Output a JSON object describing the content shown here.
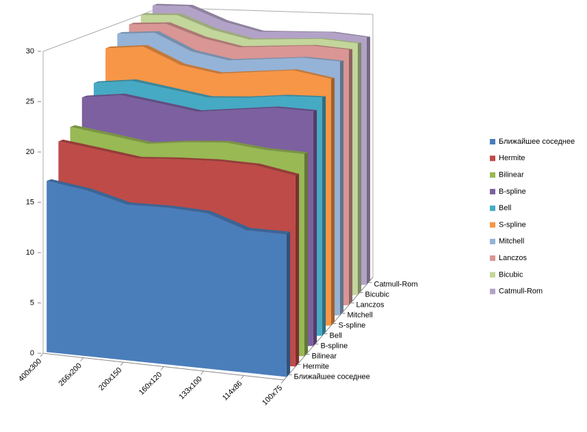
{
  "chart_data": {
    "type": "area3d",
    "categories": [
      "400x300",
      "266x200",
      "200x150",
      "160x120",
      "133x100",
      "114x86",
      "100x75"
    ],
    "series": [
      {
        "name": "Ближайшее соседнее",
        "color": "#4a7ebb",
        "values": [
          17,
          16,
          14.6,
          14.3,
          13.8,
          12.3,
          12
        ]
      },
      {
        "name": "Hermite",
        "color": "#be4b48",
        "values": [
          20.5,
          19.5,
          18.5,
          18.3,
          18,
          17.5,
          16.5
        ]
      },
      {
        "name": "Bilinear",
        "color": "#98b954",
        "values": [
          21.5,
          20.5,
          19.5,
          19.5,
          19.3,
          18.5,
          18
        ]
      },
      {
        "name": "B-spline",
        "color": "#7d60a0",
        "values": [
          24,
          24,
          23,
          22,
          22,
          22,
          21.5
        ]
      },
      {
        "name": "Bell",
        "color": "#46aac5",
        "values": [
          25,
          25,
          24,
          23,
          22.8,
          22.8,
          22.5
        ]
      },
      {
        "name": "S-spline",
        "color": "#f79646",
        "values": [
          28,
          28,
          26,
          25,
          25,
          25,
          24
        ]
      },
      {
        "name": "Mitchell",
        "color": "#95b3d7",
        "values": [
          29,
          29,
          27,
          26,
          26,
          26,
          25.5
        ]
      },
      {
        "name": "Lanczos",
        "color": "#d99694",
        "values": [
          29.5,
          29.5,
          28,
          27,
          27,
          27,
          26.5
        ]
      },
      {
        "name": "Bicubic",
        "color": "#c3d69b",
        "values": [
          30,
          30,
          28.5,
          27.5,
          27.5,
          27.5,
          27
        ]
      },
      {
        "name": "Catmull-Rom",
        "color": "#b3a2c7",
        "values": [
          30.5,
          30.5,
          29,
          28,
          28,
          28,
          27.5
        ]
      }
    ],
    "ylim": [
      0,
      30
    ],
    "yticks": [
      0,
      5,
      10,
      15,
      20,
      25,
      30
    ],
    "legend": "right"
  }
}
